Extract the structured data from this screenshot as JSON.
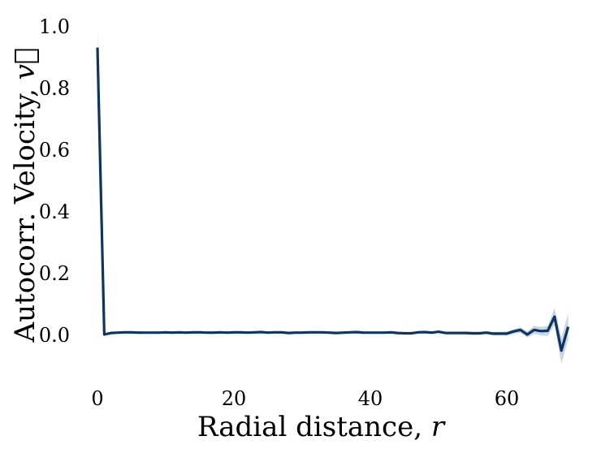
{
  "chart_data": {
    "type": "line",
    "title": "",
    "xlabel": "Radial distance, ",
    "xlabel_var": "r",
    "ylabel": "Autocorr. Velocity, ",
    "ylabel_var": "v⃗",
    "xlim": [
      -1,
      70
    ],
    "ylim": [
      -0.1,
      1.0
    ],
    "x_ticks": [
      0,
      20,
      40,
      60
    ],
    "y_ticks": [
      0.0,
      0.2,
      0.4,
      0.6,
      0.8,
      1.0
    ],
    "x_tick_labels": [
      "0",
      "20",
      "40",
      "60"
    ],
    "y_tick_labels": [
      "0.0",
      "0.2",
      "0.4",
      "0.6",
      "0.8",
      "1.0"
    ],
    "grid": false,
    "line_color": "#0d3560",
    "band_color": "#b9c9de",
    "series": [
      {
        "x": [
          0,
          1,
          2,
          3,
          4,
          5,
          6,
          7,
          8,
          9,
          10,
          11,
          12,
          13,
          14,
          15,
          16,
          17,
          18,
          19,
          20,
          21,
          22,
          23,
          24,
          25,
          26,
          27,
          28,
          29,
          30,
          31,
          32,
          33,
          34,
          35,
          36,
          37,
          38,
          39,
          40,
          41,
          42,
          43,
          44,
          45,
          46,
          47,
          48,
          49,
          50,
          51,
          52,
          53,
          54,
          55,
          56,
          57,
          58,
          59,
          60,
          61,
          62,
          63,
          64,
          65,
          66,
          67,
          68,
          69
        ],
        "y": [
          0.93,
          0.0,
          0.005,
          0.006,
          0.007,
          0.007,
          0.006,
          0.006,
          0.006,
          0.006,
          0.007,
          0.006,
          0.007,
          0.006,
          0.007,
          0.007,
          0.006,
          0.006,
          0.007,
          0.006,
          0.007,
          0.007,
          0.006,
          0.007,
          0.008,
          0.006,
          0.007,
          0.007,
          0.005,
          0.006,
          0.006,
          0.007,
          0.007,
          0.007,
          0.006,
          0.005,
          0.006,
          0.007,
          0.008,
          0.006,
          0.006,
          0.006,
          0.006,
          0.007,
          0.005,
          0.004,
          0.004,
          0.007,
          0.008,
          0.006,
          0.009,
          0.005,
          0.005,
          0.005,
          0.005,
          0.004,
          0.004,
          0.006,
          0.003,
          0.003,
          0.003,
          0.01,
          0.015,
          0.0,
          0.015,
          0.011,
          0.012,
          0.058,
          -0.052,
          0.025
        ],
        "lower": [
          0.86,
          -0.002,
          0.003,
          0.004,
          0.005,
          0.005,
          0.004,
          0.004,
          0.004,
          0.004,
          0.005,
          0.004,
          0.005,
          0.004,
          0.005,
          0.005,
          0.004,
          0.004,
          0.005,
          0.004,
          0.005,
          0.005,
          0.004,
          0.005,
          0.005,
          0.003,
          0.004,
          0.004,
          0.002,
          0.003,
          0.003,
          0.004,
          0.004,
          0.004,
          0.003,
          0.002,
          0.003,
          0.004,
          0.005,
          0.003,
          0.003,
          0.003,
          0.003,
          0.004,
          0.002,
          0.001,
          0.001,
          0.003,
          0.004,
          0.002,
          0.005,
          0.001,
          0.001,
          0.001,
          0.0,
          -0.001,
          -0.001,
          0.001,
          -0.003,
          -0.003,
          -0.004,
          0.002,
          0.006,
          -0.01,
          0.002,
          -0.003,
          -0.004,
          0.03,
          -0.095,
          -0.018
        ],
        "upper": [
          0.99,
          0.002,
          0.007,
          0.008,
          0.009,
          0.009,
          0.008,
          0.008,
          0.008,
          0.008,
          0.009,
          0.008,
          0.009,
          0.008,
          0.009,
          0.009,
          0.008,
          0.008,
          0.009,
          0.008,
          0.009,
          0.009,
          0.008,
          0.009,
          0.011,
          0.009,
          0.01,
          0.01,
          0.008,
          0.009,
          0.009,
          0.01,
          0.01,
          0.01,
          0.009,
          0.008,
          0.009,
          0.01,
          0.011,
          0.009,
          0.009,
          0.009,
          0.009,
          0.01,
          0.008,
          0.007,
          0.007,
          0.011,
          0.012,
          0.01,
          0.013,
          0.009,
          0.009,
          0.009,
          0.01,
          0.009,
          0.009,
          0.011,
          0.009,
          0.009,
          0.01,
          0.018,
          0.024,
          0.01,
          0.028,
          0.025,
          0.028,
          0.086,
          -0.009,
          0.068
        ]
      }
    ]
  }
}
